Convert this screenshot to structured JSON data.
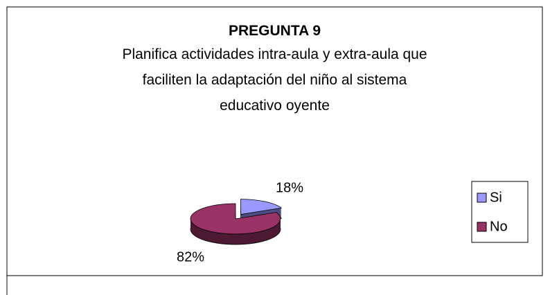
{
  "chart_data": {
    "type": "pie",
    "title": "PREGUNTA 9",
    "subtitle": [
      "Planifica actividades intra-aula y extra-aula que",
      "faciliten la adaptación del niño al sistema",
      "educativo oyente"
    ],
    "categories": [
      "Si",
      "No"
    ],
    "values": [
      18,
      82
    ],
    "value_labels": [
      "18%",
      "82%"
    ],
    "colors": [
      "#9999ff",
      "#993366"
    ],
    "legend": "right",
    "exploded": [
      true,
      false
    ]
  }
}
